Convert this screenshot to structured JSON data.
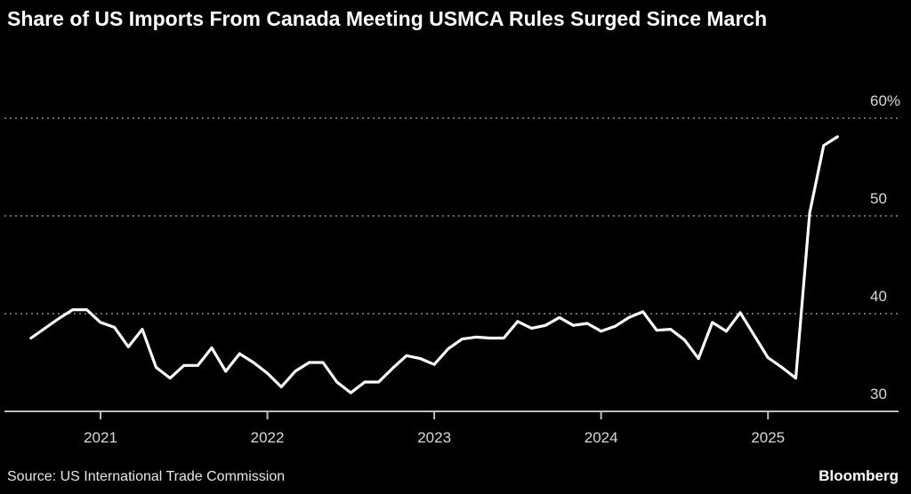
{
  "chart_data": {
    "type": "line",
    "title": "Share of US Imports From Canada Meeting USMCA Rules Surged Since March",
    "source": "Source: US International Trade Commission",
    "brand": "Bloomberg",
    "xlabel": "",
    "ylabel": "",
    "ylim": [
      30,
      60
    ],
    "y_ticks": [
      {
        "value": 60,
        "label": "60%"
      },
      {
        "value": 50,
        "label": "50"
      },
      {
        "value": 40,
        "label": "40"
      },
      {
        "value": 30,
        "label": "30"
      }
    ],
    "x_ticks": [
      {
        "month_index": 0,
        "label": "2021"
      },
      {
        "month_index": 12,
        "label": "2022"
      },
      {
        "month_index": 24,
        "label": "2023"
      },
      {
        "month_index": 36,
        "label": "2024"
      },
      {
        "month_index": 48,
        "label": "2025"
      }
    ],
    "grid": true,
    "series": [
      {
        "name": "Share of US imports from Canada meeting USMCA rules (%)",
        "start": "2020-08",
        "color": "#ffffff",
        "values": [
          37.5,
          38.5,
          39.5,
          40.4,
          40.4,
          39.1,
          38.6,
          36.6,
          38.4,
          34.5,
          33.4,
          34.7,
          34.7,
          36.5,
          34.1,
          35.9,
          35.0,
          33.9,
          32.5,
          34.1,
          35.0,
          35.0,
          33.0,
          31.9,
          33.0,
          33.0,
          34.4,
          35.7,
          35.4,
          34.8,
          36.4,
          37.4,
          37.6,
          37.5,
          37.5,
          39.2,
          38.5,
          38.8,
          39.6,
          38.8,
          39.0,
          38.2,
          38.7,
          39.6,
          40.2,
          38.3,
          38.4,
          37.3,
          35.4,
          39.1,
          38.2,
          40.1,
          37.8,
          35.5,
          34.5,
          33.4,
          50.3,
          57.2,
          58.1
        ]
      }
    ]
  }
}
